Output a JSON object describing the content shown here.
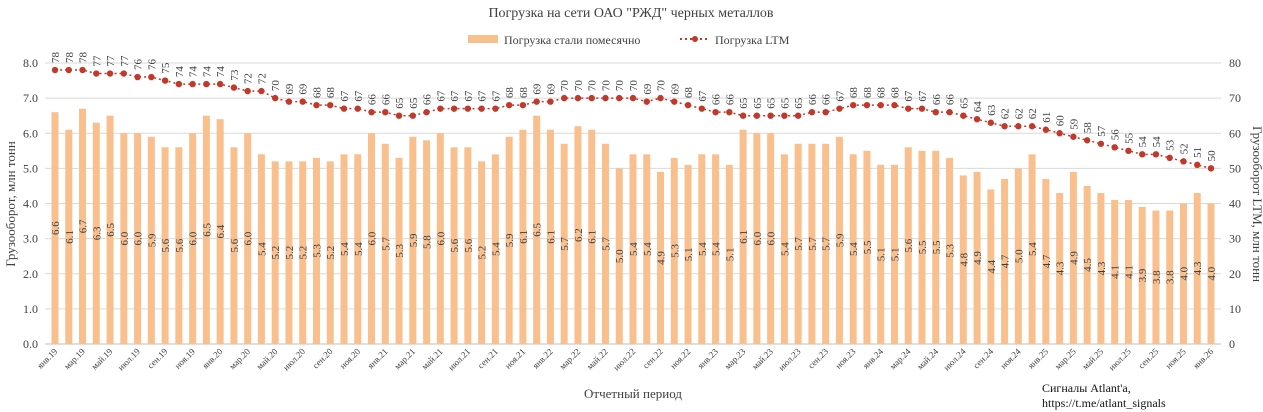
{
  "chart_data": {
    "type": "bar+line",
    "title": "Погрузка на сети ОАО \"РЖД\" черных металлов",
    "xlabel": "Отчетный период",
    "ylabel_left": "Грузооборот, млн тонн",
    "ylabel_right": "Грузооборот LTM, млн тонн",
    "ylim_left": [
      0,
      8
    ],
    "ylim_right": [
      0,
      80
    ],
    "yticks_left": [
      "0.0",
      "1.0",
      "2.0",
      "3.0",
      "4.0",
      "5.0",
      "6.0",
      "7.0",
      "8.0"
    ],
    "yticks_right": [
      "0",
      "10",
      "20",
      "30",
      "40",
      "50",
      "60",
      "70",
      "80"
    ],
    "grid": true,
    "legend_position": "top",
    "x_tick_labels": [
      "янв.19",
      "мар.19",
      "май.19",
      "июл.19",
      "сен.19",
      "ноя.19",
      "янв.20",
      "мар.20",
      "май.20",
      "июл.20",
      "сен.20",
      "ноя.20",
      "янв.21",
      "мар.21",
      "май.21",
      "июл.21",
      "сен.21",
      "ноя.21",
      "янв.22",
      "мар.22",
      "май.22",
      "июл.22",
      "сен.22",
      "ноя.22",
      "янв.23",
      "мар.23",
      "май.23",
      "июл.23",
      "сен.23",
      "ноя.23",
      "янв.24",
      "мар.24",
      "май.24",
      "июл.24",
      "сен.24",
      "ноя.24",
      "янв.25",
      "мар.25",
      "май.25",
      "июл.25",
      "сен.25",
      "ноя.25",
      "янв.26"
    ],
    "series": [
      {
        "name": "Погрузка стали помесячно",
        "type": "bar",
        "axis": "left",
        "color": "#F9C08E",
        "values": [
          6.6,
          6.1,
          6.7,
          6.3,
          6.5,
          6.0,
          6.0,
          5.9,
          5.6,
          5.6,
          6.0,
          6.5,
          6.4,
          5.6,
          6.0,
          5.4,
          5.2,
          5.2,
          5.2,
          5.3,
          5.2,
          5.4,
          5.4,
          6.0,
          5.7,
          5.3,
          5.9,
          5.8,
          6.0,
          5.6,
          5.6,
          5.2,
          5.4,
          5.9,
          6.1,
          6.5,
          6.1,
          5.7,
          6.2,
          6.1,
          5.7,
          5.0,
          5.4,
          5.4,
          4.9,
          5.3,
          5.1,
          5.4,
          5.4,
          5.1,
          6.1,
          6.0,
          6.0,
          5.4,
          5.7,
          5.7,
          5.7,
          5.9,
          5.4,
          5.5,
          5.1,
          5.1,
          5.6,
          5.5,
          5.5,
          5.3,
          4.8,
          4.9,
          4.4,
          4.7,
          5.0,
          5.4,
          4.7,
          4.3,
          4.9,
          4.5,
          4.3,
          4.1,
          4.1,
          3.9,
          3.8,
          3.8,
          4.0,
          4.3,
          4.0
        ]
      },
      {
        "name": "Погрузка LTM",
        "type": "line",
        "axis": "right",
        "color": "#C0392B",
        "values": [
          78,
          78,
          78,
          77,
          77,
          77,
          76,
          76,
          75,
          74,
          74,
          74,
          74,
          73,
          72,
          72,
          70,
          69,
          69,
          68,
          68,
          67,
          67,
          66,
          66,
          65,
          65,
          66,
          67,
          67,
          67,
          67,
          67,
          68,
          68,
          69,
          69,
          70,
          70,
          70,
          70,
          70,
          70,
          69,
          70,
          69,
          68,
          67,
          66,
          66,
          65,
          65,
          65,
          65,
          65,
          66,
          66,
          67,
          68,
          68,
          68,
          68,
          67,
          67,
          66,
          66,
          65,
          64,
          63,
          62,
          62,
          62,
          61,
          60,
          59,
          58,
          57,
          56,
          55,
          54,
          54,
          53,
          52,
          51,
          50
        ]
      }
    ]
  },
  "watermark": {
    "line1": "Сигналы Atlant'a,",
    "line2": "https://t.me/atlant_signals"
  }
}
